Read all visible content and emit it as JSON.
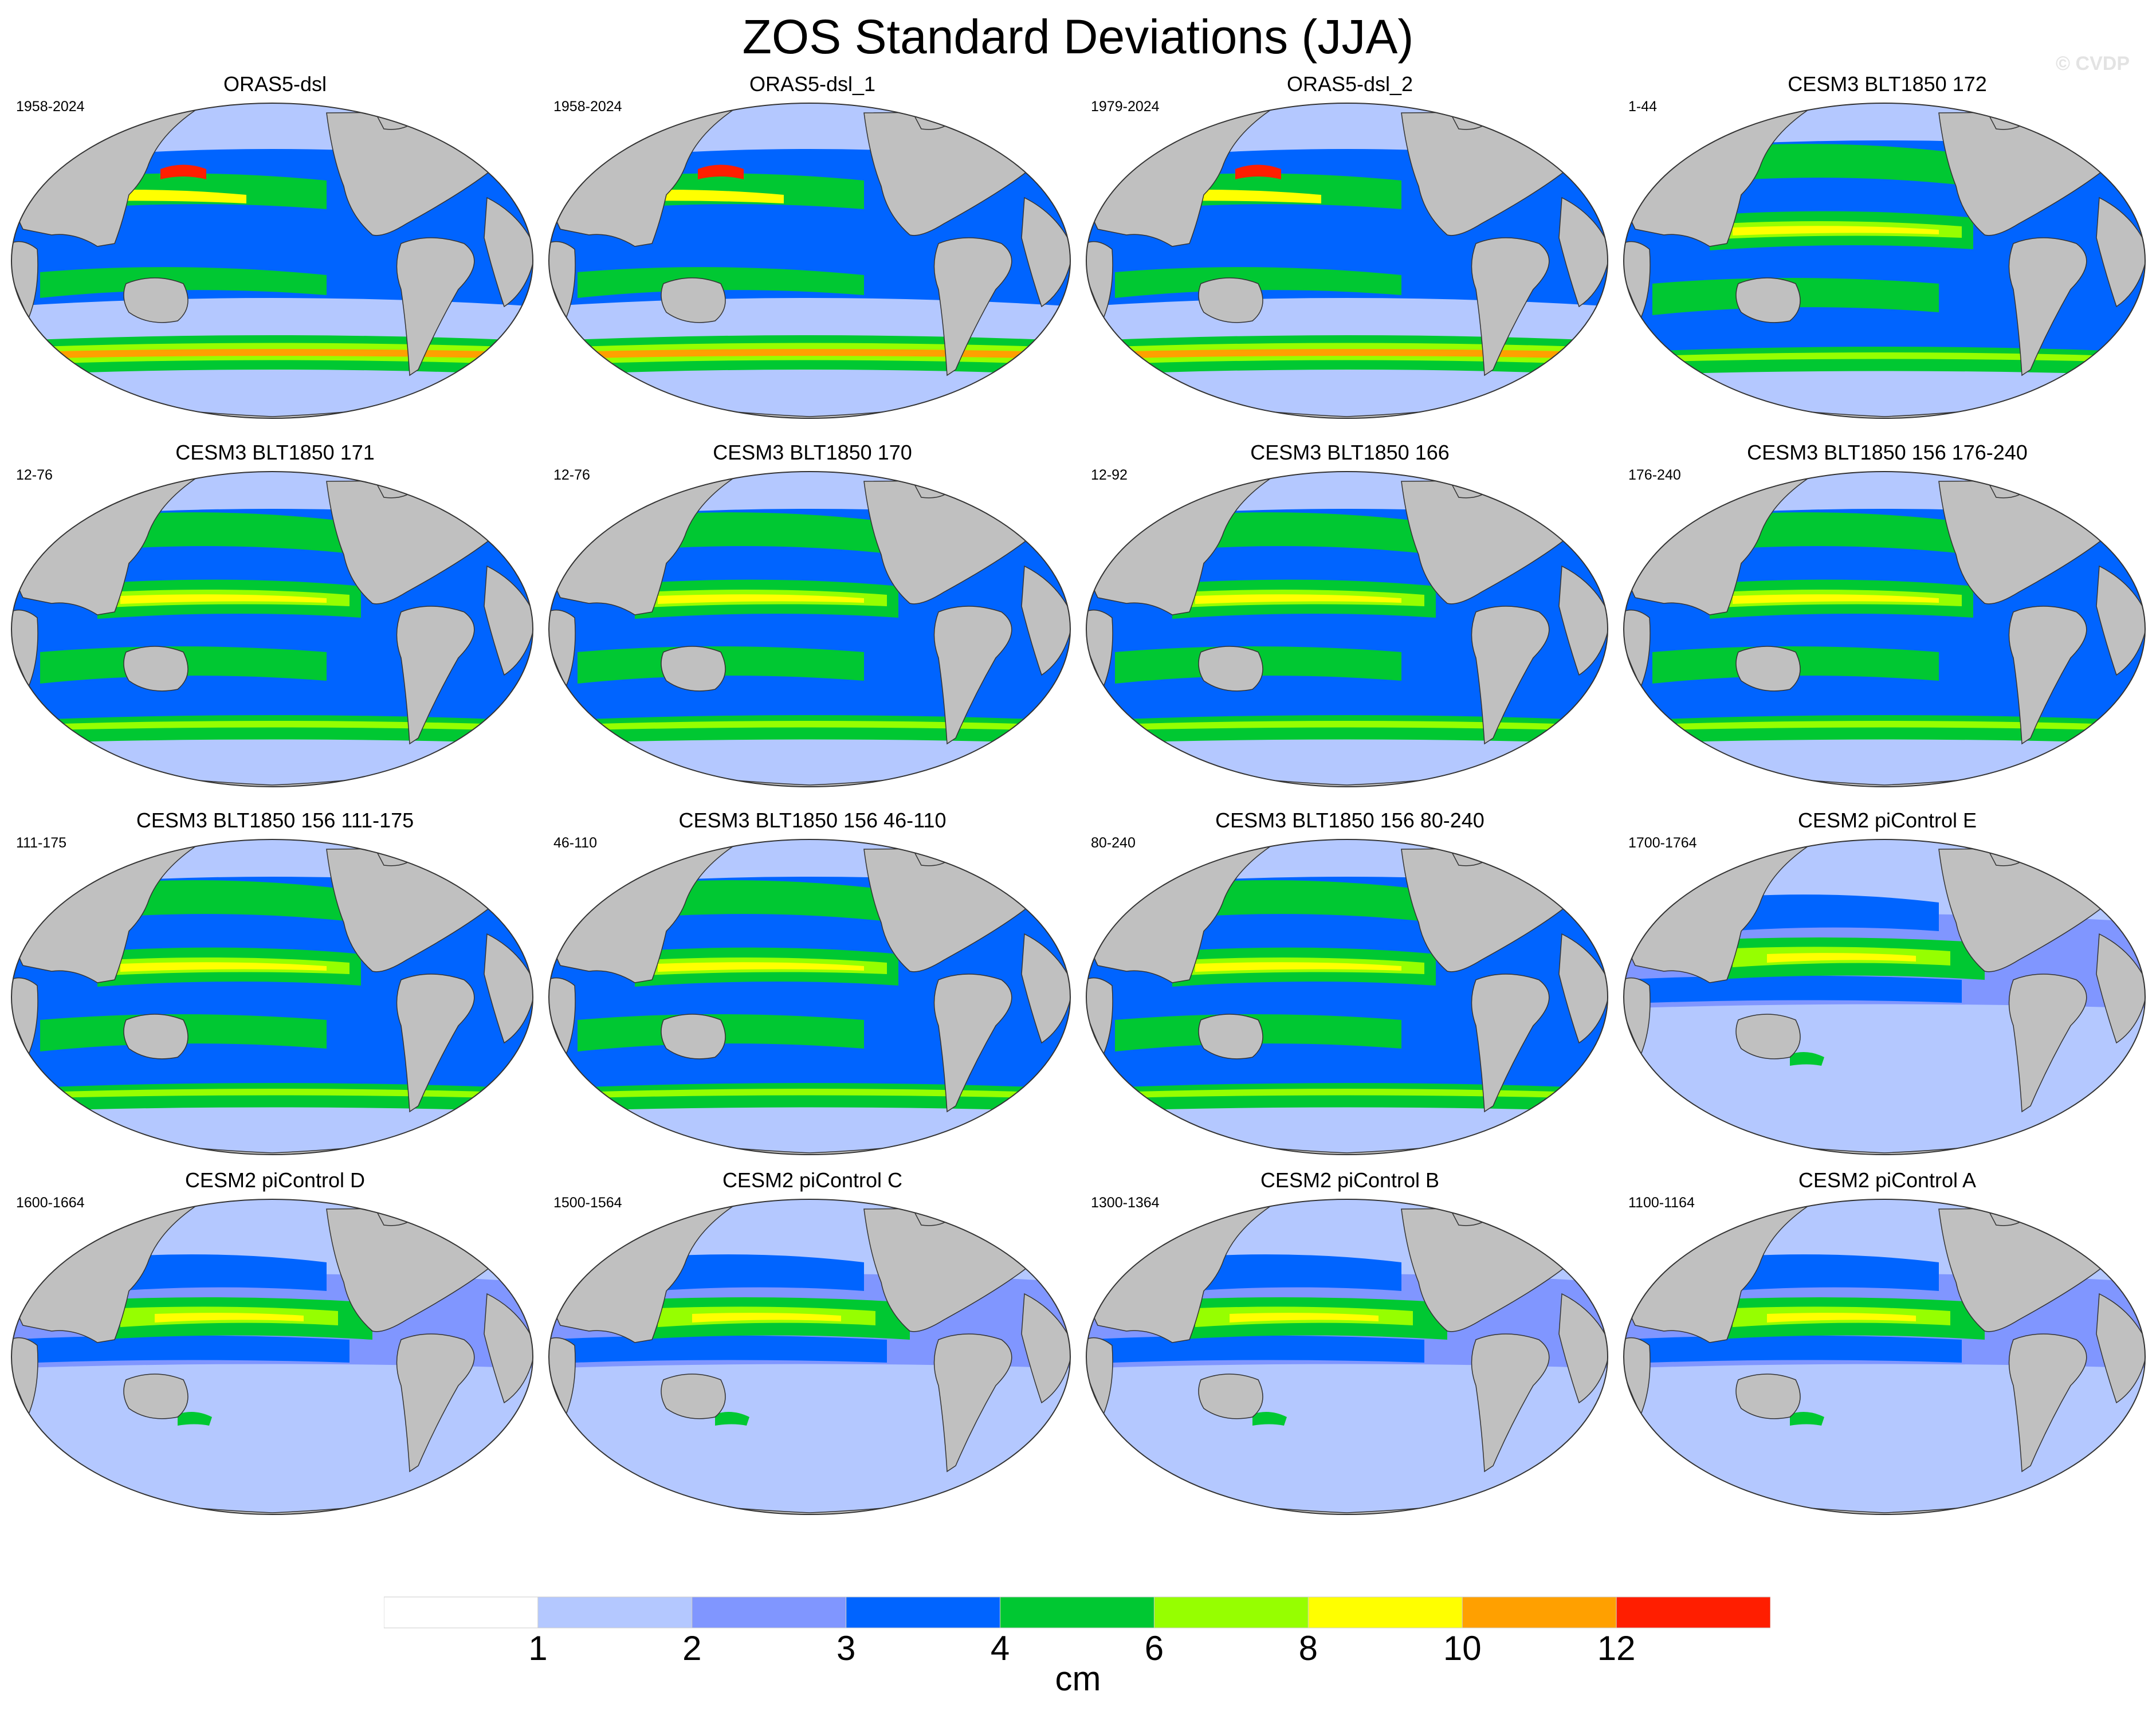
{
  "title": "ZOS Standard Deviations (JJA)",
  "watermark": "© CVDP",
  "panels": [
    {
      "name": "ORAS5-dsl",
      "years": "1958-2024",
      "style": "oras"
    },
    {
      "name": "ORAS5-dsl_1",
      "years": "1958-2024",
      "style": "oras"
    },
    {
      "name": "ORAS5-dsl_2",
      "years": "1979-2024",
      "style": "oras"
    },
    {
      "name": "CESM3 BLT1850 172",
      "years": "1-44",
      "style": "cesm3"
    },
    {
      "name": "CESM3 BLT1850 171",
      "years": "12-76",
      "style": "cesm3"
    },
    {
      "name": "CESM3 BLT1850 170",
      "years": "12-76",
      "style": "cesm3"
    },
    {
      "name": "CESM3 BLT1850 166",
      "years": "12-92",
      "style": "cesm3"
    },
    {
      "name": "CESM3 BLT1850 156 176-240",
      "years": "176-240",
      "style": "cesm3"
    },
    {
      "name": "CESM3 BLT1850 156 111-175",
      "years": "111-175",
      "style": "cesm3"
    },
    {
      "name": "CESM3 BLT1850 156 46-110",
      "years": "46-110",
      "style": "cesm3"
    },
    {
      "name": "CESM3 BLT1850 156 80-240",
      "years": "80-240",
      "style": "cesm3"
    },
    {
      "name": "CESM2 piControl E",
      "years": "1700-1764",
      "style": "cesm2"
    },
    {
      "name": "CESM2 piControl D",
      "years": "1600-1664",
      "style": "cesm2"
    },
    {
      "name": "CESM2 piControl C",
      "years": "1500-1564",
      "style": "cesm2"
    },
    {
      "name": "CESM2 piControl B",
      "years": "1300-1364",
      "style": "cesm2"
    },
    {
      "name": "CESM2 piControl A",
      "years": "1100-1164",
      "style": "cesm2"
    }
  ],
  "colorbar": {
    "units": "cm",
    "tick_labels": [
      "1",
      "2",
      "3",
      "4",
      "6",
      "8",
      "10",
      "12"
    ],
    "colors": [
      "#ffffff",
      "#b4c8ff",
      "#8096ff",
      "#0064ff",
      "#00c832",
      "#96ff00",
      "#ffff00",
      "#ffa000",
      "#ff1e00"
    ]
  },
  "map_colors": {
    "land": "#c0c0c0",
    "coast": "#333333",
    "ocean_base": "#b4c8ff"
  }
}
